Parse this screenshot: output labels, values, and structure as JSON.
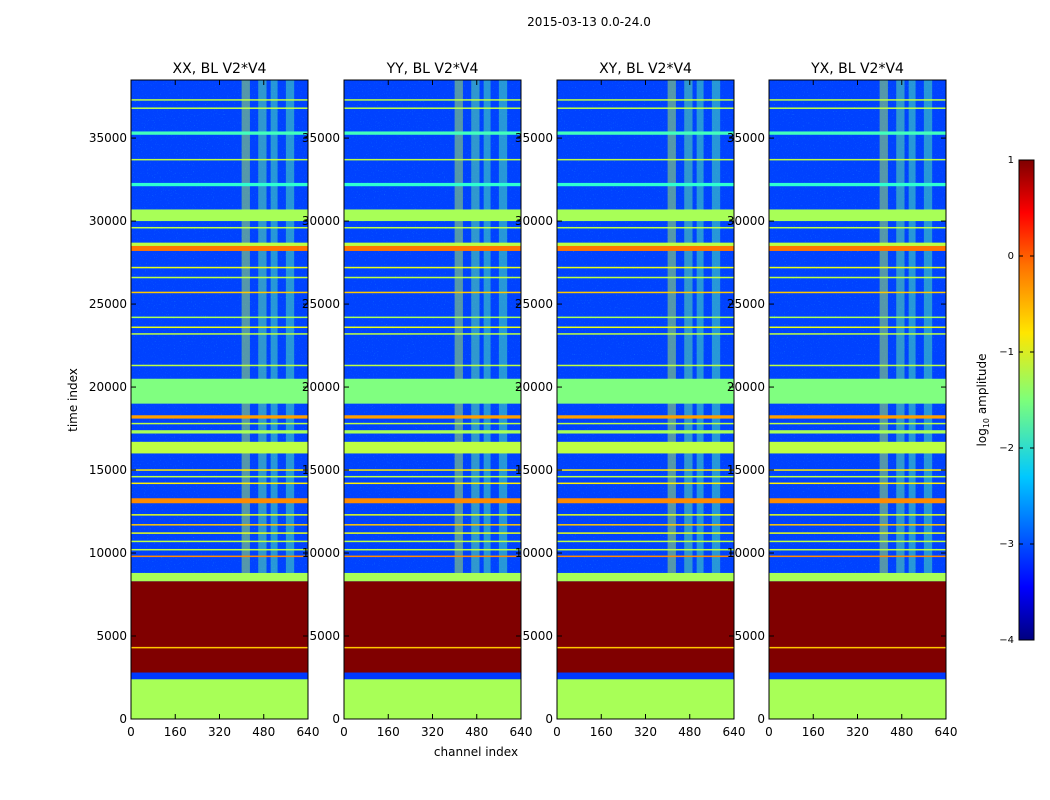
{
  "chart_data": {
    "type": "heatmap",
    "suptitle": "2015-03-13 0.0-24.0",
    "xlabel": "channel index",
    "ylabel": "time index",
    "xlim": [
      0,
      640
    ],
    "ylim": [
      0,
      38500
    ],
    "x_ticks": [
      "0",
      "160",
      "320",
      "480",
      "640"
    ],
    "y_ticks": [
      "0",
      "5000",
      "10000",
      "15000",
      "20000",
      "25000",
      "30000",
      "35000"
    ],
    "x_tick_values": [
      0,
      160,
      320,
      480,
      640
    ],
    "y_tick_values": [
      0,
      5000,
      10000,
      15000,
      20000,
      25000,
      30000,
      35000
    ],
    "panels": [
      {
        "title": "XX, BL V2*V4"
      },
      {
        "title": "YY, BL V2*V4"
      },
      {
        "title": "XY, BL V2*V4"
      },
      {
        "title": "YX, BL V2*V4"
      }
    ],
    "colorbar": {
      "label_prefix": "log",
      "label_sub": "10",
      "label_suffix": " amplitude",
      "range": [
        -4,
        1
      ],
      "ticks": [
        "1",
        "0",
        "−1",
        "−2",
        "−3",
        "−4"
      ],
      "tick_values": [
        1,
        0,
        -1,
        -2,
        -3,
        -4
      ],
      "colormap": "jet"
    },
    "bands": [
      {
        "from": 0,
        "to": 2400,
        "value": -1.3
      },
      {
        "from": 2400,
        "to": 2800,
        "value": -3.1
      },
      {
        "from": 2800,
        "to": 8300,
        "value": 1.0
      },
      {
        "from": 8300,
        "to": 8800,
        "value": -1.3
      },
      {
        "from": 13000,
        "to": 13300,
        "value": -0.3
      },
      {
        "from": 16000,
        "to": 16700,
        "value": -1.2
      },
      {
        "from": 17200,
        "to": 17400,
        "value": -1.3
      },
      {
        "from": 18100,
        "to": 18300,
        "value": -0.4
      },
      {
        "from": 19000,
        "to": 20500,
        "value": -1.5
      },
      {
        "from": 28200,
        "to": 28500,
        "value": -0.2
      },
      {
        "from": 28500,
        "to": 28700,
        "value": -1.2
      },
      {
        "from": 30000,
        "to": 30700,
        "value": -1.3
      },
      {
        "from": 32100,
        "to": 32300,
        "value": -1.9
      },
      {
        "from": 35200,
        "to": 35400,
        "value": -1.8
      }
    ],
    "lines": [
      {
        "y": 4300,
        "value": -0.6
      },
      {
        "y": 9800,
        "value": -0.3
      },
      {
        "y": 10200,
        "value": -1.2
      },
      {
        "y": 10700,
        "value": -1.2
      },
      {
        "y": 11200,
        "value": -1.0
      },
      {
        "y": 11700,
        "value": -0.6
      },
      {
        "y": 12300,
        "value": -1.0
      },
      {
        "y": 14200,
        "value": -0.8
      },
      {
        "y": 14600,
        "value": -1.2
      },
      {
        "y": 15000,
        "value": -0.8
      },
      {
        "y": 17800,
        "value": -1.2
      },
      {
        "y": 21300,
        "value": -1.2
      },
      {
        "y": 23200,
        "value": -1.2
      },
      {
        "y": 23600,
        "value": -1.0
      },
      {
        "y": 24200,
        "value": -1.3
      },
      {
        "y": 25700,
        "value": -0.6
      },
      {
        "y": 26600,
        "value": -1.2
      },
      {
        "y": 27200,
        "value": -1.0
      },
      {
        "y": 29600,
        "value": -1.2
      },
      {
        "y": 33700,
        "value": -1.2
      },
      {
        "y": 36800,
        "value": -1.2
      },
      {
        "y": 37300,
        "value": -1.2
      }
    ],
    "columns": [
      {
        "from": 400,
        "to": 430,
        "value": -1.2
      },
      {
        "from": 460,
        "to": 490,
        "value": -1.6
      },
      {
        "from": 505,
        "to": 530,
        "value": -1.7
      },
      {
        "from": 560,
        "to": 590,
        "value": -1.7
      }
    ]
  }
}
